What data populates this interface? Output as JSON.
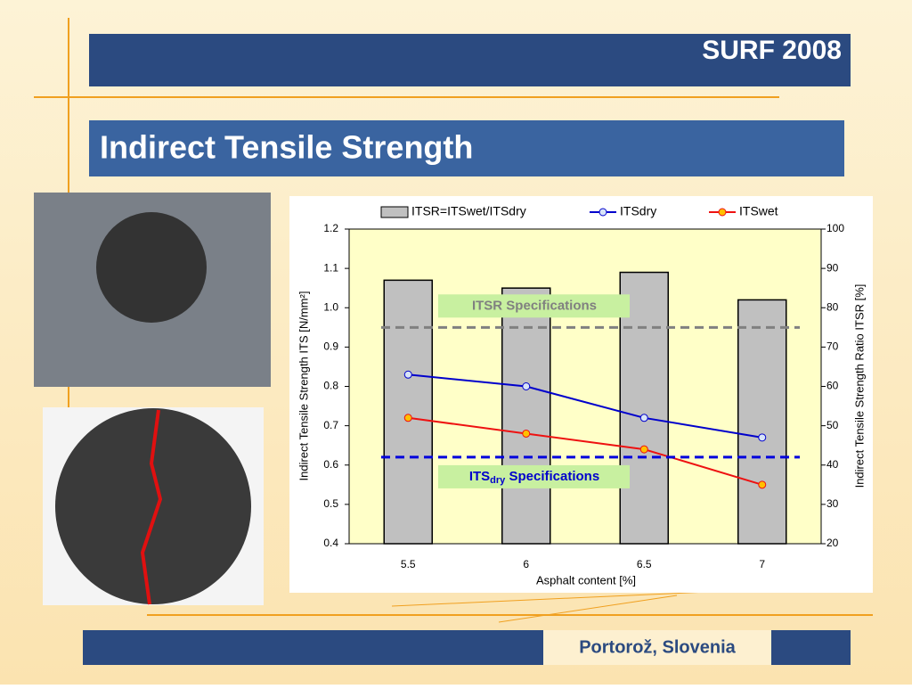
{
  "header": {
    "brand": "SURF 2008",
    "title": "Indirect Tensile Strength"
  },
  "footer": {
    "location": "Portorož, Slovenia"
  },
  "chart_data": {
    "type": "combo",
    "categories": [
      "5.5",
      "6",
      "6.5",
      "7"
    ],
    "xlabel": "Asphalt content [%]",
    "ylabel": "Indirect Tensile Strength ITS [N/mm²]",
    "y2label": "Indirect Tensile Strength Ratio ITSR [%]",
    "ylim": [
      0.4,
      1.2
    ],
    "yticks": [
      0.4,
      0.5,
      0.6,
      0.7,
      0.8,
      0.9,
      {
        "value": 1,
        "label": "1.0"
      },
      1.1,
      1.2
    ],
    "y2lim": [
      20,
      100
    ],
    "y2ticks": [
      20,
      30,
      40,
      50,
      60,
      70,
      80,
      90,
      100
    ],
    "series": [
      {
        "name": "ITSR=ITSwet/ITSdry",
        "type": "bar",
        "axis": "y2",
        "color": "#c0c0c0",
        "values": [
          87,
          85,
          89,
          82
        ]
      },
      {
        "name": "ITSdry",
        "type": "line",
        "color": "#0000cc",
        "marker": "#d8e4f8",
        "values": [
          0.83,
          0.8,
          0.72,
          0.67
        ]
      },
      {
        "name": "ITSwet",
        "type": "line",
        "color": "#ee1111",
        "marker": "#ffc000",
        "values": [
          0.72,
          0.68,
          0.64,
          0.55
        ]
      }
    ],
    "reference_lines": [
      {
        "value": 75,
        "axis": "y2",
        "color": "#808080",
        "label": {
          "text": "ITSR Specifications"
        }
      },
      {
        "value": 0.62,
        "axis": "y",
        "color": "#0000dd",
        "label": {
          "text": "ITS",
          "sub": "dry",
          "rest": " Specifications"
        }
      }
    ]
  }
}
